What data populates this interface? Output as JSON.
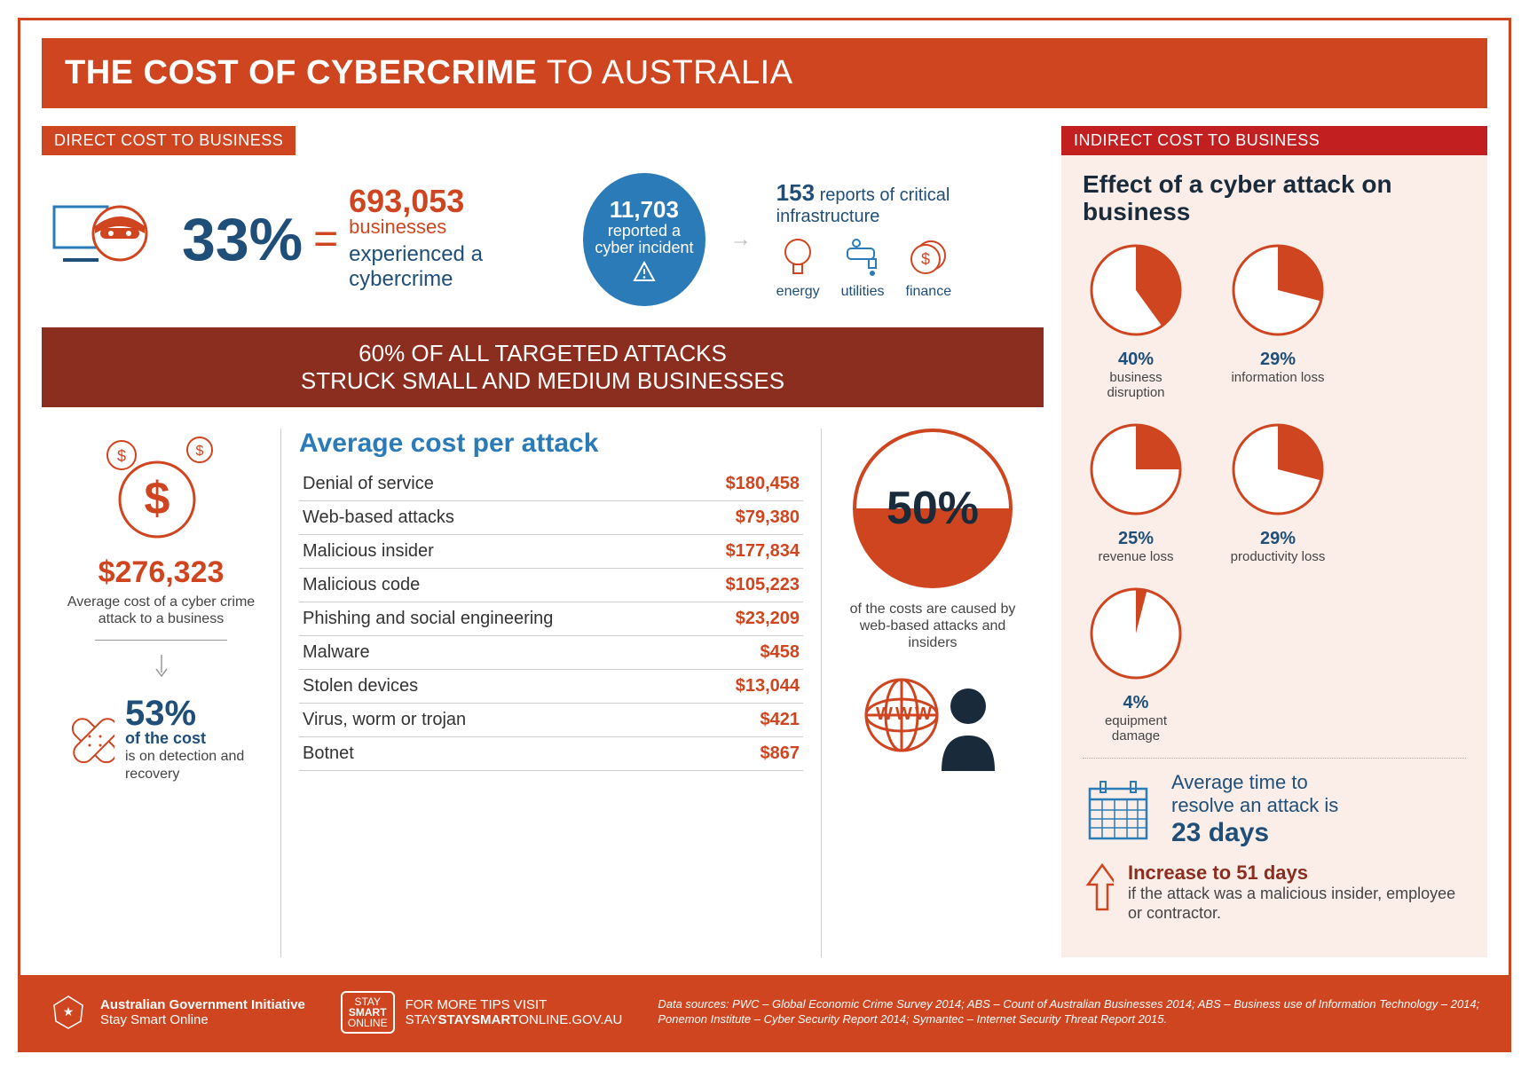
{
  "colors": {
    "orange": "#cf4520",
    "dark_red": "#8b2d1f",
    "red": "#c11f20",
    "blue": "#2b7bb9",
    "navy": "#1f4e79",
    "dark_navy": "#192a3a",
    "pink_bg": "#fbeee8",
    "white": "#ffffff",
    "grey_border": "#cccccc"
  },
  "title": {
    "bold": "THE COST OF CYBERCRIME",
    "rest": " TO AUSTRALIA"
  },
  "direct_tag": "DIRECT COST TO BUSINESS",
  "indirect_tag": "INDIRECT COST TO BUSINESS",
  "top": {
    "pct": "33%",
    "eq": "=",
    "biz_num": "693,053",
    "biz_label": "businesses",
    "exp_line": "experienced a cybercrime",
    "circle_num": "11,703",
    "circle_line1": "reported a",
    "circle_line2": "cyber incident",
    "infra_num": "153",
    "infra_line": " reports of critical infrastructure",
    "infra_items": [
      "energy",
      "utilities",
      "finance"
    ]
  },
  "dark_banner_l1": "60% OF ALL TARGETED ATTACKS",
  "dark_banner_l2": "STRUCK SMALL AND MEDIUM BUSINESSES",
  "avg": {
    "num": "$276,323",
    "lbl": "Average cost of a cyber crime attack to a business",
    "pct53": "53%",
    "pct53_lbl": "of the cost",
    "pct53_sub": "is on detection and recovery"
  },
  "table": {
    "title": "Average cost per attack",
    "rows": [
      {
        "k": "Denial of service",
        "v": "$180,458"
      },
      {
        "k": "Web-based attacks",
        "v": "$79,380"
      },
      {
        "k": "Malicious insider",
        "v": "$177,834"
      },
      {
        "k": "Malicious code",
        "v": "$105,223"
      },
      {
        "k": "Phishing and social engineering",
        "v": "$23,209"
      },
      {
        "k": "Malware",
        "v": "$458"
      },
      {
        "k": "Stolen devices",
        "v": "$13,044"
      },
      {
        "k": "Virus, worm or trojan",
        "v": "$421"
      },
      {
        "k": "Botnet",
        "v": "$867"
      }
    ]
  },
  "fifty": {
    "pct": "50%",
    "sub": "of the costs are caused by web-based attacks and insiders"
  },
  "effect": {
    "title": "Effect of a cyber attack on business",
    "pies": [
      {
        "pct": 40,
        "pct_label": "40%",
        "label": "business disruption"
      },
      {
        "pct": 29,
        "pct_label": "29%",
        "label": "information loss"
      },
      {
        "pct": 25,
        "pct_label": "25%",
        "label": "revenue loss"
      },
      {
        "pct": 29,
        "pct_label": "29%",
        "label": "productivity loss"
      },
      {
        "pct": 4,
        "pct_label": "4%",
        "label": "equipment damage"
      }
    ],
    "pie_fill": "#cf4520",
    "pie_outline": "#cf4520",
    "pie_radius": 50
  },
  "resolve": {
    "line1": "Average time to",
    "line2": "resolve an attack is",
    "days": "23 days"
  },
  "increase": {
    "title": "Increase to 51 days",
    "sub": "if the attack was a malicious insider, employee or contractor."
  },
  "footer": {
    "gov1": "Australian Government Initiative",
    "gov2": "Stay Smart Online",
    "stay_l1": "STAY",
    "stay_l2": "SMART",
    "stay_l3": "ONLINE",
    "visit_lbl": "FOR MORE TIPS VISIT",
    "visit_url_bold": "STAYSMART",
    "visit_url_rest": "ONLINE.GOV.AU",
    "sources": "Data sources: PWC – Global Economic Crime Survey 2014; ABS – Count of Australian Businesses 2014; ABS – Business use of Information Technology – 2014; Ponemon Institute – Cyber Security Report 2014; Symantec – Internet Security Threat Report 2015."
  }
}
